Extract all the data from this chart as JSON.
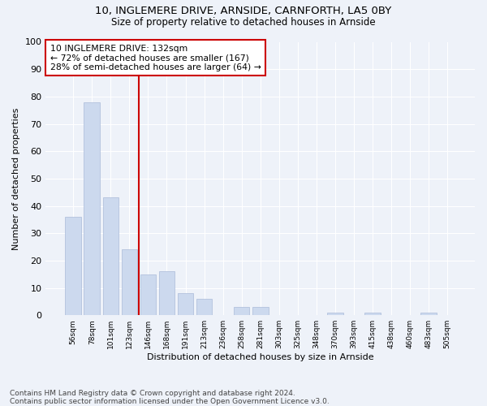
{
  "title1": "10, INGLEMERE DRIVE, ARNSIDE, CARNFORTH, LA5 0BY",
  "title2": "Size of property relative to detached houses in Arnside",
  "xlabel": "Distribution of detached houses by size in Arnside",
  "ylabel": "Number of detached properties",
  "categories": [
    "56sqm",
    "78sqm",
    "101sqm",
    "123sqm",
    "146sqm",
    "168sqm",
    "191sqm",
    "213sqm",
    "236sqm",
    "258sqm",
    "281sqm",
    "303sqm",
    "325sqm",
    "348sqm",
    "370sqm",
    "393sqm",
    "415sqm",
    "438sqm",
    "460sqm",
    "483sqm",
    "505sqm"
  ],
  "values": [
    36,
    78,
    43,
    24,
    15,
    16,
    8,
    6,
    0,
    3,
    3,
    0,
    0,
    0,
    1,
    0,
    1,
    0,
    0,
    1,
    0
  ],
  "bar_color": "#ccd9ee",
  "bar_edge_color": "#aabbd8",
  "vline_x": 3.5,
  "vline_color": "#cc0000",
  "annotation_text": "10 INGLEMERE DRIVE: 132sqm\n← 72% of detached houses are smaller (167)\n28% of semi-detached houses are larger (64) →",
  "annotation_box_color": "#ffffff",
  "annotation_box_edge": "#cc0000",
  "ylim": [
    0,
    100
  ],
  "yticks": [
    0,
    10,
    20,
    30,
    40,
    50,
    60,
    70,
    80,
    90,
    100
  ],
  "footer": "Contains HM Land Registry data © Crown copyright and database right 2024.\nContains public sector information licensed under the Open Government Licence v3.0.",
  "bg_color": "#eef2f9",
  "plot_bg_color": "#eef2f9"
}
